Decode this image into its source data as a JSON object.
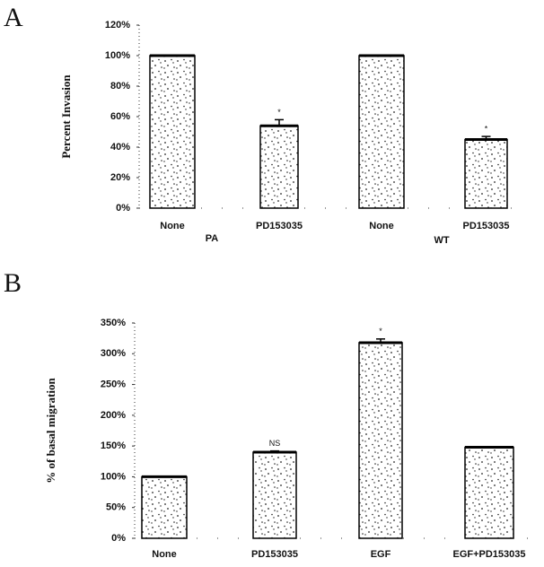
{
  "chart_data": [
    {
      "type": "bar",
      "panel": "A",
      "ylabel": "Percent Invasion",
      "categories": [
        "None",
        "PD153035",
        "None",
        "PD153035"
      ],
      "group_labels": [
        "PA",
        "WT"
      ],
      "series": [
        {
          "color": "#000000",
          "values": [
            100,
            54,
            100,
            45
          ],
          "errors": [
            0,
            4,
            0,
            2
          ],
          "annotations": [
            null,
            "*",
            null,
            "*"
          ]
        }
      ],
      "ylim": [
        0,
        120
      ],
      "yticks": [
        {
          "value": 0,
          "label": "0%"
        },
        {
          "value": 20,
          "label": "20%"
        },
        {
          "value": 40,
          "label": "40%"
        },
        {
          "value": 60,
          "label": "60%"
        },
        {
          "value": 80,
          "label": "80%"
        },
        {
          "value": 100,
          "label": "100%"
        },
        {
          "value": 120,
          "label": "120%"
        }
      ]
    },
    {
      "type": "bar",
      "panel": "B",
      "ylabel": "% of basal migration",
      "categories": [
        "None",
        "PD153035",
        "EGF",
        "EGF+PD153035"
      ],
      "series": [
        {
          "color": "#000000",
          "values": [
            100,
            140,
            318,
            148
          ],
          "errors": [
            0,
            2,
            6,
            0
          ],
          "annotations": [
            null,
            "NS",
            "*",
            null
          ]
        }
      ],
      "ylim": [
        0,
        350
      ],
      "yticks": [
        {
          "value": 0,
          "label": "0%"
        },
        {
          "value": 50,
          "label": "50%"
        },
        {
          "value": 100,
          "label": "100%"
        },
        {
          "value": 150,
          "label": "150%"
        },
        {
          "value": 200,
          "label": "200%"
        },
        {
          "value": 250,
          "label": "250%"
        },
        {
          "value": 300,
          "label": "300%"
        },
        {
          "value": 350,
          "label": "350%"
        }
      ]
    }
  ]
}
